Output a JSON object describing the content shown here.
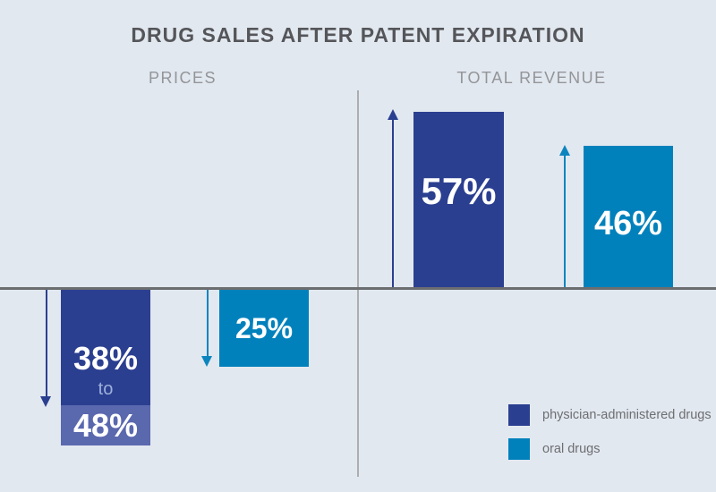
{
  "title": "DRUG SALES AFTER PATENT EXPIRATION",
  "chart_data": {
    "type": "bar",
    "title": "DRUG SALES AFTER PATENT EXPIRATION",
    "baseline": 0,
    "grid": false,
    "legend_position": "bottom-right",
    "panels": [
      {
        "label": "PRICES",
        "direction": "decrease",
        "bars": [
          {
            "series": "physician-administered drugs",
            "value_pct": -38,
            "value_range_pct": [
              -38,
              -48
            ],
            "label": "38% to 48%"
          },
          {
            "series": "oral drugs",
            "value_pct": -25,
            "label": "25%"
          }
        ]
      },
      {
        "label": "TOTAL REVENUE",
        "direction": "increase",
        "bars": [
          {
            "series": "physician-administered drugs",
            "value_pct": 57,
            "label": "57%"
          },
          {
            "series": "oral drugs",
            "value_pct": 46,
            "label": "46%"
          }
        ]
      }
    ]
  },
  "display": {
    "prices_physician": {
      "value": "38%",
      "connector": "to",
      "range_value": "48%"
    },
    "prices_oral": {
      "value": "25%"
    },
    "revenue_physician": {
      "value": "57%"
    },
    "revenue_oral": {
      "value": "46%"
    }
  },
  "legend": {
    "items": [
      {
        "label": "physician-administered drugs",
        "color": "#2b3f90"
      },
      {
        "label": "oral drugs",
        "color": "#0081bc"
      }
    ]
  },
  "colors": {
    "background": "#e2e8f0",
    "dark_blue": "#2b3f90",
    "light_blue": "#0081bc",
    "light_blue_arrow": "#0c85be",
    "range_overlay": "#5a68ae",
    "range_connector_text": "#9db0da",
    "bar_value_text": "#ffffff",
    "baseline": "#6b6d70",
    "divider": "#abadb0",
    "title_text": "#55565a",
    "section_label_text": "#939598",
    "legend_text": "#6d6e71"
  }
}
